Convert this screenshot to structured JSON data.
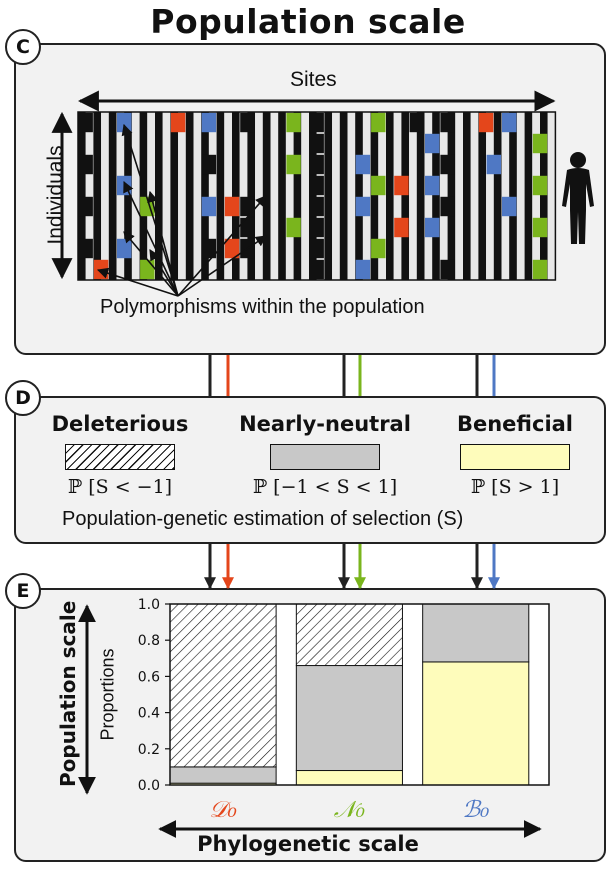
{
  "title": "Population scale",
  "panel_c": {
    "badge": "C",
    "sites_label": "Sites",
    "individuals_label": "Individuals",
    "polymorphisms_label": "Polymorphisms within the population",
    "colors": {
      "black": "#111111",
      "blue": "#4f78c4",
      "green": "#7ab51d",
      "red": "#e4461b",
      "empty": "#e8e8e8"
    }
  },
  "panel_d": {
    "badge": "D",
    "categories": [
      {
        "name": "Deleterious",
        "expr": "ℙ [S < −1]",
        "style": "hatch"
      },
      {
        "name": "Nearly-neutral",
        "expr": "ℙ [−1 < S < 1]",
        "style": "grey"
      },
      {
        "name": "Beneficial",
        "expr": "ℙ [S > 1]",
        "style": "yellow"
      }
    ],
    "footer": "Population-genetic estimation of selection (S)"
  },
  "panel_e": {
    "badge": "E",
    "left_axis_label": "Population scale",
    "bottom_axis_label": "Phylogenetic scale",
    "chart_data": {
      "type": "bar",
      "ylabel": "Proportions",
      "ylim": [
        0,
        1
      ],
      "yticks": [
        "0.0",
        "0.2",
        "0.4",
        "0.6",
        "0.8",
        "1.0"
      ],
      "categories": [
        "𝒟₀",
        "𝒩₀",
        "ℬ₀"
      ],
      "category_colors": [
        "#e4461b",
        "#7ab51d",
        "#4f78c4"
      ],
      "series": [
        {
          "name": "Beneficial",
          "values": [
            0.01,
            0.08,
            0.68
          ]
        },
        {
          "name": "Nearly-neutral",
          "values": [
            0.09,
            0.58,
            0.32
          ]
        },
        {
          "name": "Deleterious",
          "values": [
            0.9,
            0.34,
            0.0
          ]
        }
      ]
    }
  },
  "connector_colors": [
    "#e4461b",
    "#7ab51d",
    "#4f78c4"
  ]
}
